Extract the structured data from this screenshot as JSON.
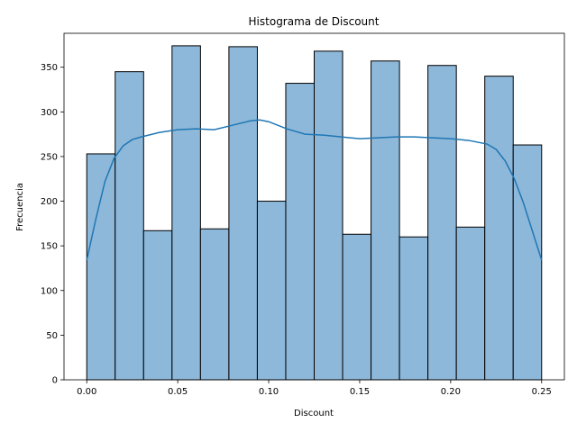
{
  "chart_data": {
    "type": "bar",
    "title": "Histograma de Discount",
    "xlabel": "Discount",
    "ylabel": "Frecuencia",
    "xlim": [
      -0.0125,
      0.2625
    ],
    "ylim": [
      0,
      388
    ],
    "xticks": [
      0.0,
      0.05,
      0.1,
      0.15,
      0.2,
      0.25
    ],
    "xtick_labels": [
      "0.00",
      "0.05",
      "0.10",
      "0.15",
      "0.20",
      "0.25"
    ],
    "yticks": [
      0,
      50,
      100,
      150,
      200,
      250,
      300,
      350
    ],
    "ytick_labels": [
      "0",
      "50",
      "100",
      "150",
      "200",
      "250",
      "300",
      "350"
    ],
    "bins": {
      "start": 0.0,
      "end": 0.25,
      "counts": [
        253,
        345,
        167,
        374,
        169,
        373,
        200,
        332,
        368,
        163,
        357,
        160,
        352,
        171,
        340,
        263
      ]
    },
    "kde": {
      "x": [
        0.0,
        0.005,
        0.01,
        0.015,
        0.02,
        0.025,
        0.03,
        0.04,
        0.05,
        0.06,
        0.07,
        0.08,
        0.09,
        0.095,
        0.1,
        0.11,
        0.12,
        0.13,
        0.14,
        0.15,
        0.16,
        0.17,
        0.18,
        0.19,
        0.2,
        0.21,
        0.22,
        0.225,
        0.23,
        0.235,
        0.24,
        0.245,
        0.25
      ],
      "y": [
        134,
        180,
        222,
        248,
        262,
        269,
        272,
        277,
        280,
        281,
        280,
        285,
        290,
        291,
        289,
        281,
        275,
        274,
        272,
        270,
        271,
        272,
        272,
        271,
        270,
        268,
        264,
        258,
        245,
        225,
        198,
        166,
        134
      ]
    },
    "grid": false,
    "colors": {
      "bar_fill": "#8DB8DA",
      "bar_edge": "#000000",
      "kde_line": "#1F77B4"
    }
  }
}
